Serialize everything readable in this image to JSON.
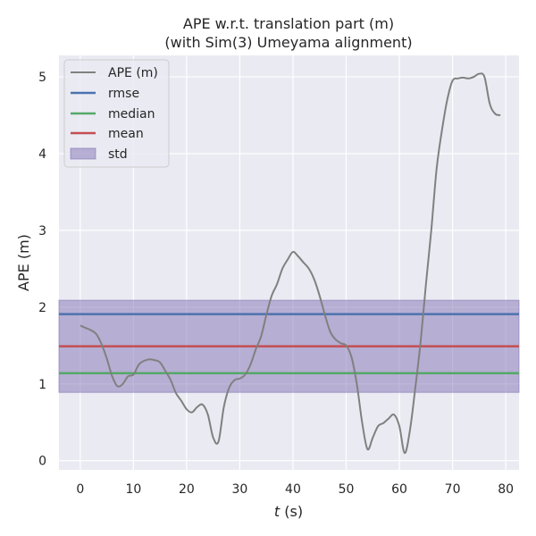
{
  "chart_data": {
    "type": "line",
    "title": "APE w.r.t. translation part (m)",
    "subtitle": "(with Sim(3) Umeyama alignment)",
    "xlabel_var": "t",
    "xlabel_unit": " (s)",
    "ylabel": "APE (m)",
    "xlim": [
      -4,
      82.5
    ],
    "ylim": [
      -0.12,
      5.28
    ],
    "xticks": [
      0,
      10,
      20,
      30,
      40,
      50,
      60,
      70,
      80
    ],
    "yticks": [
      0,
      1,
      2,
      3,
      4,
      5
    ],
    "grid": true,
    "legend_position": "top-left",
    "colors": {
      "ape": "#808080",
      "rmse": "#4c72b0",
      "median": "#55a868",
      "mean": "#c44e52",
      "std": "#8172b3",
      "background": "#eaeaf2",
      "grid": "#ffffff"
    },
    "legend": [
      {
        "key": "ape",
        "label": "APE (m)"
      },
      {
        "key": "rmse",
        "label": "rmse"
      },
      {
        "key": "median",
        "label": "median"
      },
      {
        "key": "mean",
        "label": "mean"
      },
      {
        "key": "std",
        "label": "std"
      }
    ],
    "stats": {
      "rmse": 1.91,
      "median": 1.14,
      "mean": 1.49,
      "std_low": 0.89,
      "std_high": 2.09
    },
    "series": [
      {
        "name": "APE (m)",
        "x": [
          0,
          1,
          2,
          3,
          4,
          5,
          6,
          7,
          8,
          9,
          10,
          11,
          12,
          13,
          14,
          15,
          16,
          17,
          18,
          19,
          20,
          21,
          22,
          23,
          24,
          25,
          26,
          27,
          28,
          29,
          30,
          31,
          32,
          33,
          34,
          35,
          36,
          37,
          38,
          39,
          40,
          41,
          42,
          43,
          44,
          45,
          46,
          47,
          48,
          49,
          50,
          51,
          52,
          53,
          54,
          55,
          56,
          57,
          58,
          59,
          60,
          61,
          62,
          63,
          64,
          65,
          66,
          67,
          68,
          69,
          70,
          71,
          72,
          73,
          74,
          75,
          76,
          77,
          78,
          79
        ],
        "y": [
          1.76,
          1.73,
          1.7,
          1.65,
          1.52,
          1.33,
          1.1,
          0.97,
          1.0,
          1.1,
          1.12,
          1.25,
          1.3,
          1.32,
          1.31,
          1.28,
          1.17,
          1.05,
          0.88,
          0.78,
          0.67,
          0.63,
          0.7,
          0.73,
          0.6,
          0.3,
          0.25,
          0.7,
          0.95,
          1.05,
          1.07,
          1.12,
          1.25,
          1.45,
          1.62,
          1.9,
          2.15,
          2.3,
          2.5,
          2.62,
          2.72,
          2.66,
          2.58,
          2.5,
          2.36,
          2.15,
          1.9,
          1.68,
          1.58,
          1.53,
          1.5,
          1.35,
          1.0,
          0.5,
          0.15,
          0.3,
          0.45,
          0.49,
          0.55,
          0.6,
          0.45,
          0.1,
          0.4,
          0.95,
          1.55,
          2.3,
          3.0,
          3.8,
          4.3,
          4.7,
          4.95,
          4.98,
          4.99,
          4.98,
          5.0,
          5.04,
          5.0,
          4.65,
          4.52,
          4.5
        ]
      }
    ]
  }
}
